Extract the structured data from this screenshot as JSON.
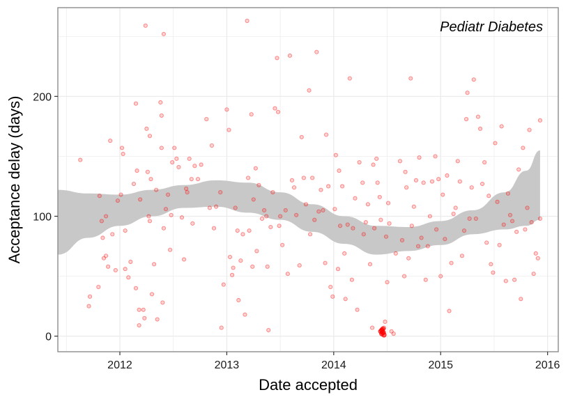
{
  "chart_data": {
    "type": "scatter",
    "title": "",
    "annotation": "Pediatr Diabetes",
    "xlabel": "Date accepted",
    "ylabel": "Acceptance delay (days)",
    "x_unit": "year",
    "xlim": [
      2011.42,
      2016.1
    ],
    "ylim": [
      -13,
      274
    ],
    "x_ticks": [
      2012,
      2013,
      2014,
      2015,
      2016
    ],
    "x_tick_labels": [
      "2012",
      "2013",
      "2014",
      "2015",
      "2016"
    ],
    "y_ticks": [
      0,
      100,
      200
    ],
    "y_tick_labels": [
      "0",
      "100",
      "200"
    ],
    "grid": true,
    "legend": "none",
    "colors": {
      "points": "#ff0000",
      "band": "#c8c8c8",
      "panel_border": "#8c8c8c",
      "grid": "#ebebeb"
    },
    "points": [
      [
        2011.63,
        147
      ],
      [
        2011.71,
        25
      ],
      [
        2011.72,
        33
      ],
      [
        2011.8,
        41
      ],
      [
        2011.81,
        117
      ],
      [
        2011.83,
        96
      ],
      [
        2011.84,
        82
      ],
      [
        2011.85,
        65
      ],
      [
        2011.87,
        100
      ],
      [
        2011.87,
        67
      ],
      [
        2011.89,
        58
      ],
      [
        2011.91,
        163
      ],
      [
        2011.93,
        85
      ],
      [
        2011.96,
        55
      ],
      [
        2011.98,
        113
      ],
      [
        2012.01,
        118
      ],
      [
        2012.02,
        157
      ],
      [
        2012.03,
        152
      ],
      [
        2012.05,
        88
      ],
      [
        2012.05,
        56
      ],
      [
        2012.08,
        49
      ],
      [
        2012.1,
        62
      ],
      [
        2012.13,
        127
      ],
      [
        2012.15,
        194
      ],
      [
        2012.15,
        40
      ],
      [
        2012.16,
        138
      ],
      [
        2012.18,
        22
      ],
      [
        2012.18,
        9
      ],
      [
        2012.19,
        114
      ],
      [
        2012.22,
        22
      ],
      [
        2012.23,
        15
      ],
      [
        2012.24,
        259
      ],
      [
        2012.25,
        173
      ],
      [
        2012.26,
        137
      ],
      [
        2012.27,
        100
      ],
      [
        2012.28,
        167
      ],
      [
        2012.28,
        96
      ],
      [
        2012.29,
        131
      ],
      [
        2012.3,
        35
      ],
      [
        2012.32,
        60
      ],
      [
        2012.34,
        122
      ],
      [
        2012.35,
        14
      ],
      [
        2012.38,
        195
      ],
      [
        2012.39,
        157
      ],
      [
        2012.39,
        184
      ],
      [
        2012.4,
        28
      ],
      [
        2012.41,
        252
      ],
      [
        2012.41,
        90
      ],
      [
        2012.43,
        106
      ],
      [
        2012.45,
        118
      ],
      [
        2012.47,
        72
      ],
      [
        2012.48,
        101
      ],
      [
        2012.49,
        145
      ],
      [
        2012.51,
        157
      ],
      [
        2012.53,
        148
      ],
      [
        2012.55,
        141
      ],
      [
        2012.58,
        99
      ],
      [
        2012.6,
        64
      ],
      [
        2012.62,
        123
      ],
      [
        2012.63,
        120
      ],
      [
        2012.65,
        148
      ],
      [
        2012.67,
        131
      ],
      [
        2012.68,
        94
      ],
      [
        2012.7,
        142
      ],
      [
        2012.73,
        131
      ],
      [
        2012.76,
        143
      ],
      [
        2012.81,
        181
      ],
      [
        2012.84,
        107
      ],
      [
        2012.86,
        159
      ],
      [
        2012.88,
        90
      ],
      [
        2012.9,
        108
      ],
      [
        2012.94,
        120
      ],
      [
        2012.95,
        7
      ],
      [
        2012.97,
        43
      ],
      [
        2013.0,
        189
      ],
      [
        2013.02,
        172
      ],
      [
        2013.03,
        66
      ],
      [
        2013.05,
        51
      ],
      [
        2013.06,
        57
      ],
      [
        2013.08,
        107
      ],
      [
        2013.1,
        88
      ],
      [
        2013.11,
        30
      ],
      [
        2013.13,
        63
      ],
      [
        2013.15,
        85
      ],
      [
        2013.17,
        18
      ],
      [
        2013.19,
        263
      ],
      [
        2013.2,
        132
      ],
      [
        2013.21,
        88
      ],
      [
        2013.23,
        185
      ],
      [
        2013.24,
        58
      ],
      [
        2013.25,
        114
      ],
      [
        2013.27,
        140
      ],
      [
        2013.28,
        71
      ],
      [
        2013.3,
        126
      ],
      [
        2013.33,
        98
      ],
      [
        2013.35,
        105
      ],
      [
        2013.37,
        100
      ],
      [
        2013.38,
        58
      ],
      [
        2013.39,
        5
      ],
      [
        2013.41,
        91
      ],
      [
        2013.43,
        120
      ],
      [
        2013.45,
        190
      ],
      [
        2013.47,
        232
      ],
      [
        2013.48,
        187
      ],
      [
        2013.49,
        92
      ],
      [
        2013.5,
        100
      ],
      [
        2013.52,
        76
      ],
      [
        2013.55,
        105
      ],
      [
        2013.57,
        52
      ],
      [
        2013.59,
        234
      ],
      [
        2013.61,
        130
      ],
      [
        2013.63,
        124
      ],
      [
        2013.65,
        101
      ],
      [
        2013.68,
        59
      ],
      [
        2013.7,
        166
      ],
      [
        2013.72,
        132
      ],
      [
        2013.74,
        110
      ],
      [
        2013.77,
        205
      ],
      [
        2013.78,
        85
      ],
      [
        2013.8,
        132
      ],
      [
        2013.82,
        97
      ],
      [
        2013.84,
        237
      ],
      [
        2013.86,
        104
      ],
      [
        2013.88,
        122
      ],
      [
        2013.9,
        105
      ],
      [
        2013.92,
        61
      ],
      [
        2013.93,
        168
      ],
      [
        2013.95,
        125
      ],
      [
        2013.97,
        41
      ],
      [
        2013.99,
        33
      ],
      [
        2014.01,
        106
      ],
      [
        2014.02,
        151
      ],
      [
        2014.04,
        56
      ],
      [
        2014.05,
        138
      ],
      [
        2014.06,
        92
      ],
      [
        2014.08,
        125
      ],
      [
        2014.1,
        69
      ],
      [
        2014.11,
        31
      ],
      [
        2014.13,
        93
      ],
      [
        2014.15,
        215
      ],
      [
        2014.17,
        47
      ],
      [
        2014.18,
        90
      ],
      [
        2014.2,
        115
      ],
      [
        2014.22,
        22
      ],
      [
        2014.24,
        145
      ],
      [
        2014.27,
        128
      ],
      [
        2014.28,
        85
      ],
      [
        2014.3,
        95
      ],
      [
        2014.32,
        110
      ],
      [
        2014.34,
        60
      ],
      [
        2014.36,
        7
      ],
      [
        2014.37,
        143
      ],
      [
        2014.38,
        90
      ],
      [
        2014.4,
        148
      ],
      [
        2014.41,
        128
      ],
      [
        2014.43,
        116
      ],
      [
        2014.44,
        97
      ],
      [
        2014.45,
        5
      ],
      [
        2014.46,
        4
      ],
      [
        2014.47,
        3
      ],
      [
        2014.48,
        12
      ],
      [
        2014.47,
        7
      ],
      [
        2014.49,
        83
      ],
      [
        2014.5,
        45
      ],
      [
        2014.51,
        111
      ],
      [
        2014.52,
        94
      ],
      [
        2014.54,
        4
      ],
      [
        2014.56,
        2
      ],
      [
        2014.58,
        69
      ],
      [
        2014.62,
        146
      ],
      [
        2014.64,
        80
      ],
      [
        2014.66,
        50
      ],
      [
        2014.67,
        137
      ],
      [
        2014.68,
        124
      ],
      [
        2014.7,
        65
      ],
      [
        2014.72,
        215
      ],
      [
        2014.73,
        92
      ],
      [
        2014.75,
        108
      ],
      [
        2014.77,
        130
      ],
      [
        2014.79,
        75
      ],
      [
        2014.8,
        149
      ],
      [
        2014.82,
        82
      ],
      [
        2014.84,
        128
      ],
      [
        2014.86,
        47
      ],
      [
        2014.88,
        75
      ],
      [
        2014.9,
        100
      ],
      [
        2014.92,
        129
      ],
      [
        2014.95,
        150
      ],
      [
        2014.96,
        89
      ],
      [
        2014.98,
        131
      ],
      [
        2015.0,
        50
      ],
      [
        2015.02,
        118
      ],
      [
        2015.04,
        81
      ],
      [
        2015.06,
        134
      ],
      [
        2015.08,
        21
      ],
      [
        2015.1,
        61
      ],
      [
        2015.12,
        102
      ],
      [
        2015.14,
        107
      ],
      [
        2015.16,
        146
      ],
      [
        2015.18,
        129
      ],
      [
        2015.2,
        67
      ],
      [
        2015.22,
        88
      ],
      [
        2015.24,
        181
      ],
      [
        2015.25,
        203
      ],
      [
        2015.27,
        98
      ],
      [
        2015.29,
        124
      ],
      [
        2015.31,
        214
      ],
      [
        2015.33,
        98
      ],
      [
        2015.35,
        183
      ],
      [
        2015.37,
        173
      ],
      [
        2015.39,
        127
      ],
      [
        2015.41,
        145
      ],
      [
        2015.43,
        78
      ],
      [
        2015.45,
        117
      ],
      [
        2015.47,
        60
      ],
      [
        2015.49,
        53
      ],
      [
        2015.51,
        161
      ],
      [
        2015.53,
        112
      ],
      [
        2015.55,
        76
      ],
      [
        2015.57,
        175
      ],
      [
        2015.59,
        93
      ],
      [
        2015.61,
        46
      ],
      [
        2015.63,
        119
      ],
      [
        2015.65,
        101
      ],
      [
        2015.67,
        96
      ],
      [
        2015.69,
        47
      ],
      [
        2015.71,
        87
      ],
      [
        2015.73,
        139
      ],
      [
        2015.75,
        31
      ],
      [
        2015.77,
        157
      ],
      [
        2015.79,
        89
      ],
      [
        2015.81,
        107
      ],
      [
        2015.83,
        172
      ],
      [
        2015.85,
        95
      ],
      [
        2015.87,
        52
      ],
      [
        2015.89,
        69
      ],
      [
        2015.91,
        65
      ],
      [
        2015.93,
        180
      ],
      [
        2015.93,
        98
      ]
    ],
    "dense_cluster": [
      [
        2014.44,
        4
      ],
      [
        2014.45,
        2
      ],
      [
        2014.46,
        6
      ],
      [
        2014.47,
        1
      ],
      [
        2014.45,
        5
      ],
      [
        2014.46,
        3
      ]
    ],
    "smooth_band": {
      "x": [
        2011.42,
        2011.7,
        2012.0,
        2012.3,
        2012.6,
        2012.9,
        2013.2,
        2013.5,
        2013.8,
        2014.1,
        2014.4,
        2014.7,
        2015.0,
        2015.3,
        2015.6,
        2015.8,
        2015.93
      ],
      "upper": [
        122,
        119,
        118,
        122,
        126,
        130,
        128,
        120,
        110,
        100,
        92,
        91,
        96,
        105,
        120,
        138,
        155
      ],
      "lower": [
        68,
        82,
        92,
        100,
        107,
        108,
        103,
        97,
        87,
        77,
        68,
        71,
        76,
        85,
        89,
        92,
        97
      ]
    }
  }
}
